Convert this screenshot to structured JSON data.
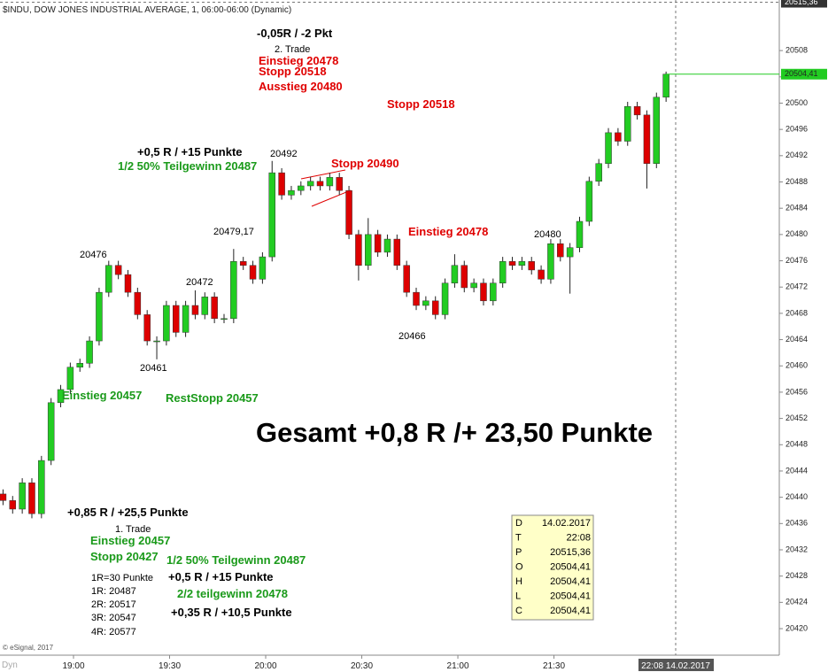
{
  "chart_data": {
    "type": "candlestick",
    "title": "$INDU, DOW JONES INDUSTRIAL AVERAGE, 1, 06:00-06:00 (Dynamic)",
    "x": [
      "18:38",
      "18:41",
      "18:44",
      "18:47",
      "18:50",
      "18:53",
      "18:56",
      "18:59",
      "19:02",
      "19:05",
      "19:08",
      "19:11",
      "19:14",
      "19:17",
      "19:20",
      "19:23",
      "19:26",
      "19:29",
      "19:32",
      "19:35",
      "19:38",
      "19:41",
      "19:44",
      "19:47",
      "19:50",
      "19:53",
      "19:56",
      "19:59",
      "20:02",
      "20:05",
      "20:08",
      "20:11",
      "20:14",
      "20:17",
      "20:20",
      "20:23",
      "20:26",
      "20:29",
      "20:32",
      "20:35",
      "20:38",
      "20:41",
      "20:44",
      "20:47",
      "20:50",
      "20:53",
      "20:56",
      "20:59",
      "21:02",
      "21:05",
      "21:08",
      "21:11",
      "21:14",
      "21:17",
      "21:20",
      "21:23",
      "21:26",
      "21:29",
      "21:32",
      "21:35",
      "21:38",
      "21:41",
      "21:44",
      "21:47",
      "21:50",
      "21:53",
      "21:56",
      "21:59",
      "22:02",
      "22:05"
    ],
    "open": [
      20440.5,
      20439.5,
      20438.2,
      20442.2,
      20437.5,
      20445.6,
      20454.4,
      20456.4,
      20459.8,
      20460.4,
      20463.8,
      20471.2,
      20475.3,
      20473.9,
      20471.2,
      20467.8,
      20463.8,
      20463.8,
      20469.2,
      20465.1,
      20469.2,
      20467.8,
      20470.5,
      20467.2,
      20467.2,
      20475.9,
      20475.3,
      20473.2,
      20476.6,
      20489.4,
      20486.0,
      20486.7,
      20487.4,
      20488.1,
      20487.4,
      20488.7,
      20486.7,
      20480.0,
      20475.3,
      20480.0,
      20477.3,
      20479.3,
      20475.3,
      20471.2,
      20469.2,
      20469.9,
      20467.8,
      20472.6,
      20475.3,
      20471.9,
      20472.6,
      20469.9,
      20472.6,
      20475.9,
      20475.3,
      20475.9,
      20474.6,
      20473.2,
      20478.6,
      20476.6,
      20478.0,
      20482.0,
      20488.1,
      20490.8,
      20495.5,
      20494.2,
      20499.5,
      20498.2,
      20490.8,
      20500.9
    ],
    "high": [
      20441.2,
      20440.2,
      20442.9,
      20442.9,
      20446.3,
      20455.1,
      20457.1,
      20460.5,
      20461.1,
      20464.5,
      20471.9,
      20476.0,
      20476.0,
      20474.6,
      20471.9,
      20468.5,
      20464.5,
      20469.9,
      20469.9,
      20469.9,
      20471.5,
      20471.2,
      20471.2,
      20467.9,
      20477.8,
      20476.6,
      20476.0,
      20477.3,
      20491.2,
      20490.1,
      20487.4,
      20488.1,
      20488.8,
      20488.8,
      20489.4,
      20489.4,
      20487.4,
      20480.7,
      20482.5,
      20480.7,
      20480.0,
      20480.0,
      20476.0,
      20471.9,
      20470.6,
      20470.6,
      20473.3,
      20477.0,
      20476.0,
      20473.3,
      20473.3,
      20473.3,
      20476.6,
      20476.6,
      20476.6,
      20476.6,
      20475.3,
      20479.3,
      20479.3,
      20478.7,
      20482.7,
      20488.8,
      20491.5,
      20496.2,
      20496.2,
      20500.2,
      20500.2,
      20498.9,
      20501.6,
      20504.8
    ],
    "low": [
      20438.8,
      20437.5,
      20437.5,
      20436.8,
      20436.8,
      20444.9,
      20453.7,
      20455.7,
      20459.1,
      20459.7,
      20463.1,
      20470.5,
      20473.2,
      20470.5,
      20467.1,
      20463.1,
      20461.0,
      20463.1,
      20464.4,
      20464.4,
      20467.1,
      20467.1,
      20466.5,
      20466.5,
      20466.5,
      20474.6,
      20472.5,
      20472.5,
      20475.9,
      20485.3,
      20485.3,
      20486.0,
      20486.7,
      20486.7,
      20486.7,
      20486.0,
      20479.3,
      20473.0,
      20474.6,
      20476.6,
      20476.6,
      20474.6,
      20470.5,
      20468.5,
      20468.5,
      20467.1,
      20467.1,
      20471.9,
      20471.2,
      20471.2,
      20469.2,
      20469.2,
      20471.9,
      20474.6,
      20474.6,
      20473.9,
      20472.5,
      20472.5,
      20475.9,
      20471.0,
      20477.3,
      20481.3,
      20487.4,
      20490.1,
      20493.5,
      20493.5,
      20497.5,
      20487.0,
      20490.1,
      20500.2
    ],
    "close": [
      20439.5,
      20438.2,
      20442.2,
      20437.5,
      20445.6,
      20454.4,
      20456.4,
      20459.8,
      20460.4,
      20463.8,
      20471.2,
      20475.3,
      20473.9,
      20471.2,
      20467.8,
      20463.8,
      20463.8,
      20469.2,
      20465.1,
      20469.2,
      20467.8,
      20470.5,
      20467.2,
      20467.2,
      20475.9,
      20475.3,
      20473.2,
      20476.6,
      20489.4,
      20486.0,
      20486.7,
      20487.4,
      20488.1,
      20487.4,
      20488.7,
      20486.7,
      20480.0,
      20475.3,
      20480.0,
      20477.3,
      20479.3,
      20475.3,
      20471.2,
      20469.2,
      20469.9,
      20467.8,
      20472.6,
      20475.3,
      20471.9,
      20472.6,
      20469.9,
      20472.6,
      20475.9,
      20475.3,
      20475.9,
      20474.6,
      20473.2,
      20478.6,
      20476.6,
      20478.0,
      20482.0,
      20488.1,
      20490.8,
      20495.5,
      20494.2,
      20499.5,
      20498.2,
      20490.8,
      20500.9,
      20504.41
    ],
    "up_color": "#22cc22",
    "down_color": "#dd0000",
    "ylim": [
      20415.96,
      20515.7
    ],
    "yticks": [
      20420,
      20424,
      20428,
      20432,
      20436,
      20440,
      20444,
      20448,
      20452,
      20456,
      20460,
      20464,
      20468,
      20472,
      20476,
      20480,
      20484,
      20488,
      20492,
      20496,
      20500,
      20504,
      20508
    ],
    "xticks": [
      "19:00",
      "19:30",
      "20:00",
      "20:30",
      "21:00",
      "21:30"
    ],
    "last_price": {
      "value": 20504.41,
      "label": "20504,41"
    },
    "cursor_price": {
      "value": 20515.36,
      "label": "20515,36"
    },
    "cursor_time": "22:08",
    "cursor_label": "22:08 14.02.2017",
    "annotations": [
      {
        "text": "-0,05R / -2 Pkt",
        "color": "#000000"
      },
      {
        "text": "2. Trade",
        "color": "#000000"
      },
      {
        "text": "Einstieg 20478",
        "color": "#e00000"
      },
      {
        "text": "Stopp 20518",
        "color": "#e00000"
      },
      {
        "text": "Ausstieg 20480",
        "color": "#e00000"
      },
      {
        "text": "Stopp 20518",
        "color": "#e00000"
      },
      {
        "text": "+0,5 R / +15 Punkte",
        "color": "#000000"
      },
      {
        "text": "1/2 50% Teilgewinn 20487",
        "color": "#1a9a1a"
      },
      {
        "text": "20492",
        "color": "#000000"
      },
      {
        "text": "Stopp 20490",
        "color": "#e00000"
      },
      {
        "text": "20479,17",
        "color": "#000000"
      },
      {
        "text": "Einstieg 20478",
        "color": "#e00000"
      },
      {
        "text": "20480",
        "color": "#000000"
      },
      {
        "text": "20476",
        "color": "#000000"
      },
      {
        "text": "20472",
        "color": "#000000"
      },
      {
        "text": "20466",
        "color": "#000000"
      },
      {
        "text": "20461",
        "color": "#000000"
      },
      {
        "text": "Einstieg 20457",
        "color": "#1a9a1a"
      },
      {
        "text": "RestStopp 20457",
        "color": "#1a9a1a"
      },
      {
        "text": "Gesamt +0,8 R /+ 23,50 Punkte",
        "color": "#000000"
      },
      {
        "text": "+0,85 R / +25,5 Punkte",
        "color": "#000000"
      },
      {
        "text": "1. Trade",
        "color": "#000000"
      },
      {
        "text": "Einstieg 20457",
        "color": "#1a9a1a"
      },
      {
        "text": "Stopp 20427",
        "color": "#1a9a1a"
      },
      {
        "text": "1/2 50% Teilgewinn 20487",
        "color": "#1a9a1a"
      },
      {
        "text": "+0,5 R / +15 Punkte",
        "color": "#000000"
      },
      {
        "text": "1R=30 Punkte",
        "color": "#000000"
      },
      {
        "text": "1R: 20487",
        "color": "#000000"
      },
      {
        "text": "2R: 20517",
        "color": "#000000"
      },
      {
        "text": "3R: 20547",
        "color": "#000000"
      },
      {
        "text": "4R: 20577",
        "color": "#000000"
      },
      {
        "text": "2/2 teilgewinn 20478",
        "color": "#1a9a1a"
      },
      {
        "text": "+0,35 R / +10,5 Punkte",
        "color": "#000000"
      }
    ],
    "data_window": [
      [
        "D",
        "14.02.2017"
      ],
      [
        "T",
        "22:08"
      ],
      [
        "P",
        "20515,36"
      ],
      [
        "O",
        "20504,41"
      ],
      [
        "H",
        "20504,41"
      ],
      [
        "L",
        "20504,41"
      ],
      [
        "C",
        "20504,41"
      ]
    ],
    "copyright": "© eSignal, 2017",
    "footer_tag": "Dyn"
  }
}
